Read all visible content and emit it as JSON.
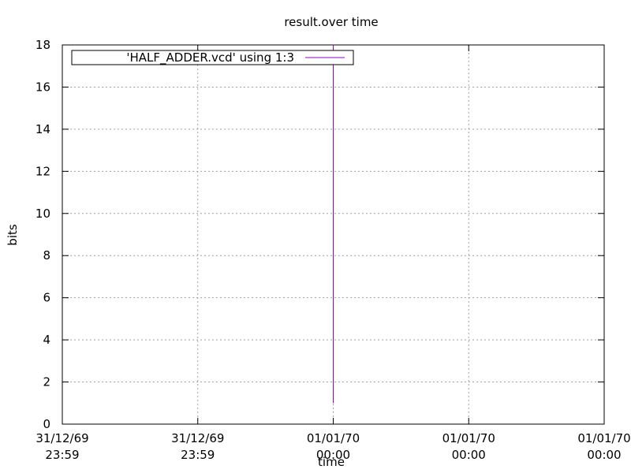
{
  "chart_data": {
    "type": "line",
    "title": "result.over time",
    "xlabel": "time",
    "ylabel": "bits",
    "ylim": [
      0,
      18
    ],
    "y_ticks": [
      0,
      2,
      4,
      6,
      8,
      10,
      12,
      14,
      16,
      18
    ],
    "x_ticks": [
      {
        "line1": "31/12/69",
        "line2": "23:59"
      },
      {
        "line1": "31/12/69",
        "line2": "23:59"
      },
      {
        "line1": "01/01/70",
        "line2": "00:00"
      },
      {
        "line1": "01/01/70",
        "line2": "00:00"
      },
      {
        "line1": "01/01/70",
        "line2": "00:00"
      }
    ],
    "grid": true,
    "legend_placement": "top-left",
    "series": [
      {
        "name": "'HALF_ADDER.vcd' using 1:3",
        "color": "#9400d3",
        "points": [
          {
            "x_tick": 2,
            "y": 1
          },
          {
            "x_tick": 2,
            "y": 18
          }
        ]
      }
    ]
  }
}
